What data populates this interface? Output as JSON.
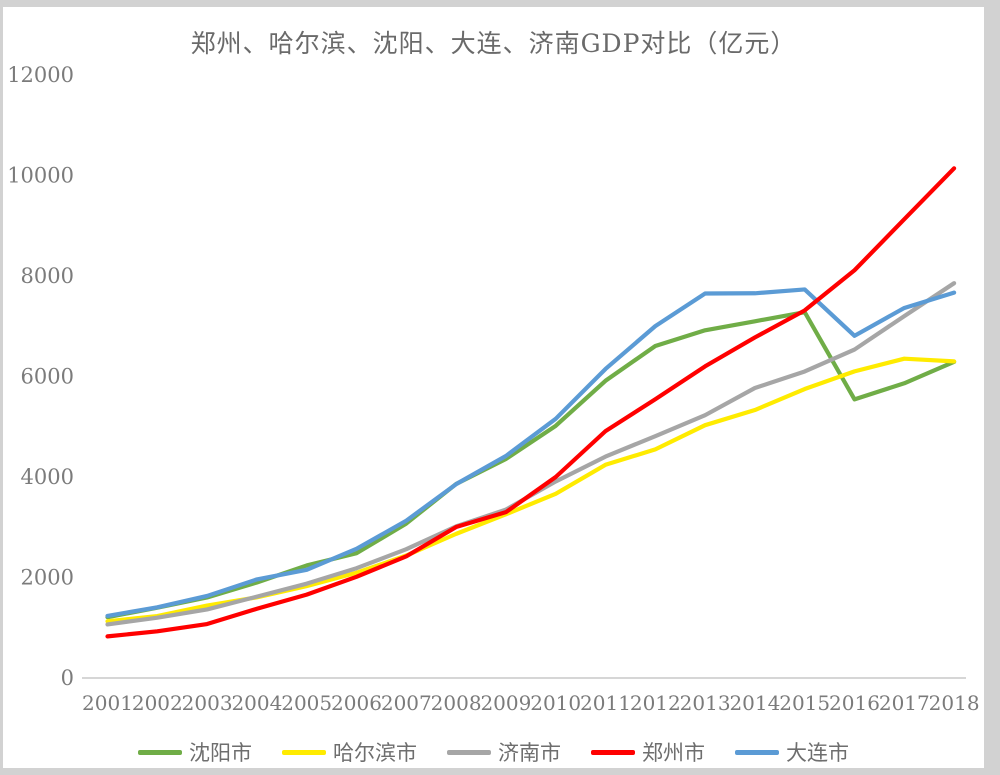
{
  "chart_data": {
    "type": "line",
    "title": "郑州、哈尔滨、沈阳、大连、济南GDP对比（亿元）",
    "xlabel": "",
    "ylabel": "",
    "categories": [
      "2001",
      "2002",
      "2003",
      "2004",
      "2005",
      "2006",
      "2007",
      "2008",
      "2009",
      "2010",
      "2011",
      "2012",
      "2013",
      "2014",
      "2015",
      "2016",
      "2017",
      "2018"
    ],
    "series": [
      {
        "name": "沈阳市",
        "color": "#70AD47",
        "values": [
          1210,
          1400,
          1602,
          1901,
          2240,
          2483,
          3074,
          3861,
          4359,
          5018,
          5915,
          6607,
          6920,
          7099,
          7281,
          5546,
          5865,
          6292
        ]
      },
      {
        "name": "哈尔滨市",
        "color": "#FFEB00",
        "values": [
          1128,
          1232,
          1441,
          1605,
          1830,
          2094,
          2437,
          2868,
          3258,
          3666,
          4243,
          4550,
          5031,
          5333,
          5751,
          6102,
          6355,
          6301
        ]
      },
      {
        "name": "济南市",
        "color": "#A6A6A6",
        "values": [
          1066,
          1200,
          1365,
          1619,
          1877,
          2185,
          2563,
          3017,
          3351,
          3911,
          4406,
          4813,
          5230,
          5771,
          6100,
          6536,
          7202,
          7857
        ]
      },
      {
        "name": "郑州市",
        "color": "#FF0000",
        "values": [
          828,
          929,
          1074,
          1378,
          1660,
          2014,
          2421,
          3004,
          3300,
          4000,
          4913,
          5547,
          6202,
          6777,
          7315,
          8114,
          9130,
          10143
        ]
      },
      {
        "name": "大连市",
        "color": "#5B9BD5",
        "values": [
          1236,
          1406,
          1633,
          1962,
          2152,
          2570,
          3131,
          3858,
          4418,
          5158,
          6150,
          7003,
          7651,
          7656,
          7732,
          6810,
          7364,
          7669
        ]
      }
    ],
    "ylim": [
      0,
      12000
    ],
    "ytick_labels": [
      "0",
      "2000",
      "4000",
      "6000",
      "8000",
      "10000",
      "12000"
    ],
    "ytick_values": [
      0,
      2000,
      4000,
      6000,
      8000,
      10000,
      12000
    ],
    "grid": false,
    "legend_position": "bottom",
    "axis_line_color": "#c9c9c9"
  }
}
